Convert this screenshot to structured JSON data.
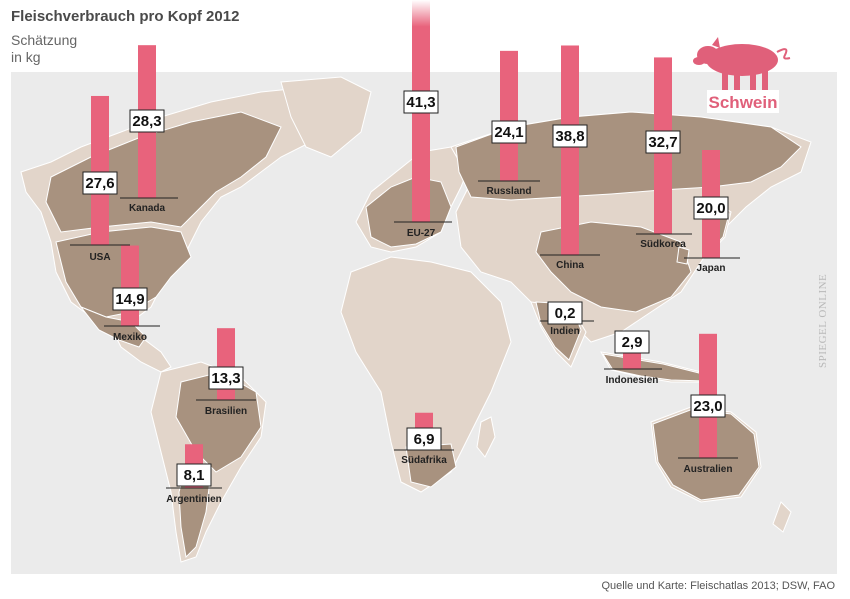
{
  "title": "Fleischverbrauch pro Kopf 2012",
  "subtitle": "Schätzung\nin kg",
  "legend": {
    "label": "Schwein",
    "icon": "pig-icon",
    "color": "#e0607a"
  },
  "source": "Quelle und Karte: Fleischatlas 2013; DSW, FAO",
  "watermark": "SPIEGEL ONLINE",
  "colors": {
    "bar": "#e8637c",
    "highlight": "#a8927f",
    "land": "#e2d5ca",
    "ocean": "#ebebeb"
  },
  "chart_data": {
    "type": "bar",
    "unit": "kg",
    "series": [
      {
        "name": "Schwein",
        "categories": [
          "USA",
          "Kanada",
          "Mexiko",
          "Brasilien",
          "Argentinien",
          "EU-27",
          "Russland",
          "Südafrika",
          "China",
          "Indien",
          "Südkorea",
          "Japan",
          "Indonesien",
          "Australien"
        ]
      }
    ],
    "countries": [
      {
        "name": "USA",
        "value": 27.6,
        "label": "27,6"
      },
      {
        "name": "Kanada",
        "value": 28.3,
        "label": "28,3"
      },
      {
        "name": "Mexiko",
        "value": 14.9,
        "label": "14,9"
      },
      {
        "name": "Brasilien",
        "value": 13.3,
        "label": "13,3"
      },
      {
        "name": "Argentinien",
        "value": 8.1,
        "label": "8,1"
      },
      {
        "name": "EU-27",
        "value": 41.3,
        "label": "41,3"
      },
      {
        "name": "Russland",
        "value": 24.1,
        "label": "24,1"
      },
      {
        "name": "Südafrika",
        "value": 6.9,
        "label": "6,9"
      },
      {
        "name": "China",
        "value": 38.8,
        "label": "38,8"
      },
      {
        "name": "Indien",
        "value": 0.2,
        "label": "0,2"
      },
      {
        "name": "Südkorea",
        "value": 32.7,
        "label": "32,7"
      },
      {
        "name": "Japan",
        "value": 20.0,
        "label": "20,0"
      },
      {
        "name": "Indonesien",
        "value": 2.9,
        "label": "2,9"
      },
      {
        "name": "Australien",
        "value": 23.0,
        "label": "23,0"
      }
    ]
  }
}
